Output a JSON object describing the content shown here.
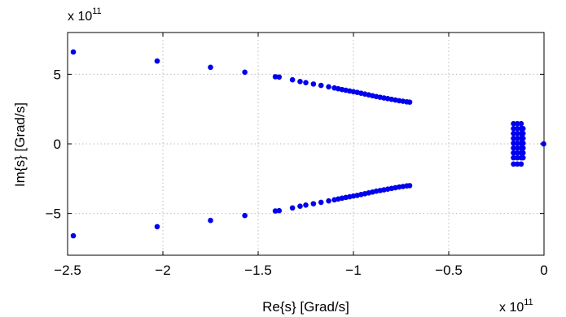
{
  "chart_data": {
    "type": "scatter",
    "title": "",
    "xlabel": "Re{s} [Grad/s]",
    "ylabel": "Im{s} [Grad/s]",
    "x_multiplier": "x 10",
    "x_multiplier_exp": "11",
    "y_multiplier": "x 10",
    "y_multiplier_exp": "11",
    "xlim": [
      -2.5,
      0
    ],
    "ylim": [
      -8,
      8
    ],
    "xticks": [
      -2.5,
      -2,
      -1.5,
      -1,
      -0.5,
      0
    ],
    "xtick_labels": [
      "−2.5",
      "−2",
      "−1.5",
      "−1",
      "−0.5",
      "0"
    ],
    "yticks": [
      -5,
      0,
      5
    ],
    "ytick_labels": [
      "−5",
      "0",
      "5"
    ],
    "grid": true,
    "legend": "none",
    "marker_color": "#0000ee",
    "series": [
      {
        "points": [
          [
            -2.47,
            6.6
          ],
          [
            -2.03,
            5.95
          ],
          [
            -1.75,
            5.5
          ],
          [
            -1.57,
            5.15
          ],
          [
            -1.41,
            4.82
          ],
          [
            -1.39,
            4.8
          ],
          [
            -1.32,
            4.6
          ],
          [
            -1.28,
            4.48
          ],
          [
            -1.25,
            4.4
          ],
          [
            -1.21,
            4.3
          ],
          [
            -1.17,
            4.2
          ],
          [
            -1.13,
            4.1
          ],
          [
            -1.1,
            4.02
          ],
          [
            -1.08,
            3.96
          ],
          [
            -1.06,
            3.9
          ],
          [
            -1.04,
            3.85
          ],
          [
            -1.02,
            3.8
          ],
          [
            -1.0,
            3.75
          ],
          [
            -0.98,
            3.7
          ],
          [
            -0.96,
            3.64
          ],
          [
            -0.94,
            3.58
          ],
          [
            -0.92,
            3.52
          ],
          [
            -0.9,
            3.46
          ],
          [
            -0.88,
            3.4
          ],
          [
            -0.86,
            3.35
          ],
          [
            -0.84,
            3.3
          ],
          [
            -0.82,
            3.25
          ],
          [
            -0.8,
            3.2
          ],
          [
            -0.78,
            3.15
          ],
          [
            -0.76,
            3.1
          ],
          [
            -0.74,
            3.06
          ],
          [
            -0.72,
            3.02
          ],
          [
            -0.705,
            3.0
          ],
          [
            -2.47,
            -6.6
          ],
          [
            -2.03,
            -5.95
          ],
          [
            -1.75,
            -5.5
          ],
          [
            -1.57,
            -5.15
          ],
          [
            -1.41,
            -4.82
          ],
          [
            -1.39,
            -4.8
          ],
          [
            -1.32,
            -4.6
          ],
          [
            -1.28,
            -4.48
          ],
          [
            -1.25,
            -4.4
          ],
          [
            -1.21,
            -4.3
          ],
          [
            -1.17,
            -4.2
          ],
          [
            -1.13,
            -4.1
          ],
          [
            -1.1,
            -4.02
          ],
          [
            -1.08,
            -3.96
          ],
          [
            -1.06,
            -3.9
          ],
          [
            -1.04,
            -3.85
          ],
          [
            -1.02,
            -3.8
          ],
          [
            -1.0,
            -3.75
          ],
          [
            -0.98,
            -3.7
          ],
          [
            -0.96,
            -3.64
          ],
          [
            -0.94,
            -3.58
          ],
          [
            -0.92,
            -3.52
          ],
          [
            -0.9,
            -3.46
          ],
          [
            -0.88,
            -3.4
          ],
          [
            -0.86,
            -3.35
          ],
          [
            -0.84,
            -3.3
          ],
          [
            -0.82,
            -3.25
          ],
          [
            -0.8,
            -3.2
          ],
          [
            -0.78,
            -3.15
          ],
          [
            -0.76,
            -3.1
          ],
          [
            -0.74,
            -3.06
          ],
          [
            -0.72,
            -3.02
          ],
          [
            -0.705,
            -3.0
          ],
          [
            -0.16,
            1.45
          ],
          [
            -0.14,
            1.45
          ],
          [
            -0.12,
            1.45
          ],
          [
            -0.16,
            1.1
          ],
          [
            -0.14,
            1.1
          ],
          [
            -0.12,
            1.1
          ],
          [
            -0.11,
            1.1
          ],
          [
            -0.16,
            0.75
          ],
          [
            -0.14,
            0.75
          ],
          [
            -0.12,
            0.75
          ],
          [
            -0.11,
            0.75
          ],
          [
            -0.16,
            0.4
          ],
          [
            -0.14,
            0.4
          ],
          [
            -0.12,
            0.4
          ],
          [
            -0.11,
            0.4
          ],
          [
            -0.16,
            0.05
          ],
          [
            -0.14,
            0.05
          ],
          [
            -0.12,
            0.05
          ],
          [
            -0.11,
            0.05
          ],
          [
            -0.16,
            -0.3
          ],
          [
            -0.14,
            -0.3
          ],
          [
            -0.12,
            -0.3
          ],
          [
            -0.11,
            -0.3
          ],
          [
            -0.16,
            -0.65
          ],
          [
            -0.14,
            -0.65
          ],
          [
            -0.12,
            -0.65
          ],
          [
            -0.11,
            -0.65
          ],
          [
            -0.16,
            -1.0
          ],
          [
            -0.14,
            -1.0
          ],
          [
            -0.12,
            -1.0
          ],
          [
            -0.11,
            -1.0
          ],
          [
            -0.16,
            -1.45
          ],
          [
            -0.14,
            -1.45
          ],
          [
            -0.12,
            -1.45
          ],
          [
            -0.002,
            0.0
          ]
        ]
      }
    ]
  }
}
